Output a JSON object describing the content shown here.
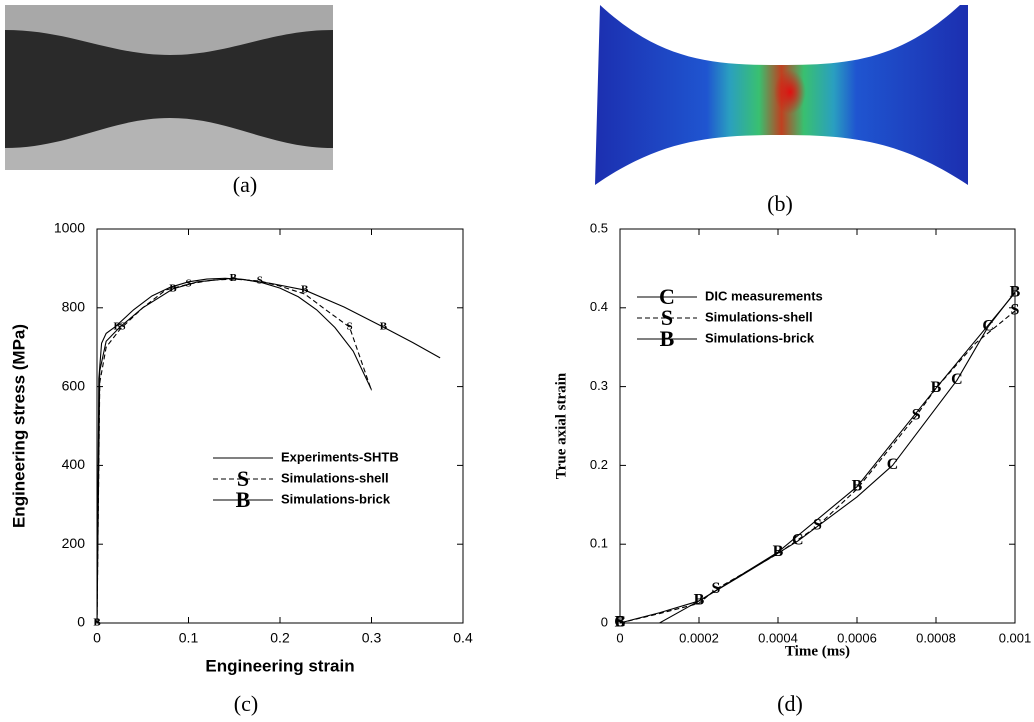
{
  "figure_captions": [
    "(a)",
    "(b)"
  ],
  "chart_data": [
    {
      "type": "line",
      "caption": "(c)",
      "xlabel": "Engineering strain",
      "ylabel": "Engineering stress (MPa)",
      "xlim": [
        0,
        0.4
      ],
      "xticks": [
        0,
        0.1,
        0.2,
        0.3,
        0.4
      ],
      "ylim": [
        0,
        1000
      ],
      "yticks": [
        0,
        200,
        400,
        600,
        800,
        1000
      ],
      "series": [
        {
          "name": "Experiments-SHTB",
          "color": "#000000",
          "line_style": "solid",
          "x": [
            0,
            0.002,
            0.005,
            0.01,
            0.02,
            0.04,
            0.06,
            0.08,
            0.1,
            0.12,
            0.14,
            0.16,
            0.18,
            0.2,
            0.22,
            0.24,
            0.26,
            0.28,
            0.3
          ],
          "values": [
            0,
            620,
            710,
            735,
            752,
            795,
            830,
            852,
            866,
            873,
            875,
            872,
            864,
            850,
            828,
            795,
            750,
            690,
            592
          ]
        },
        {
          "name": "Simulations-shell",
          "color": "#000000",
          "line_style": "dashed",
          "marker": "S",
          "x": [
            0,
            0.003,
            0.01,
            0.025,
            0.05,
            0.075,
            0.1,
            0.125,
            0.15,
            0.178,
            0.2,
            0.227,
            0.25,
            0.276,
            0.3
          ],
          "values": [
            0,
            610,
            700,
            745,
            800,
            845,
            860,
            870,
            873,
            868,
            855,
            835,
            795,
            751,
            590
          ],
          "marker_x": [
            0,
            0.028,
            0.1,
            0.178,
            0.276
          ],
          "marker_values": [
            0,
            751,
            860,
            868,
            751
          ]
        },
        {
          "name": "Simulations-brick",
          "color": "#000000",
          "line_style": "solid",
          "marker": "B",
          "x": [
            0,
            0.003,
            0.01,
            0.025,
            0.05,
            0.083,
            0.11,
            0.149,
            0.19,
            0.227,
            0.27,
            0.313,
            0.345,
            0.375
          ],
          "values": [
            0,
            640,
            715,
            751,
            800,
            848,
            866,
            875,
            862,
            845,
            802,
            751,
            712,
            673
          ],
          "marker_x": [
            0,
            0.022,
            0.083,
            0.149,
            0.227,
            0.313
          ],
          "marker_values": [
            0,
            751,
            848,
            875,
            845,
            751
          ]
        }
      ]
    },
    {
      "type": "line",
      "caption": "(d)",
      "xlabel": "Time (ms)",
      "ylabel": "True axial strain",
      "xlim": [
        0,
        0.001
      ],
      "xticks": [
        0,
        0.0002,
        0.0004,
        0.0006,
        0.0008,
        0.001
      ],
      "ylim": [
        0,
        0.5
      ],
      "yticks": [
        0,
        0.1,
        0.2,
        0.3,
        0.4,
        0.5
      ],
      "series": [
        {
          "name": "DIC measurements",
          "color": "#000000",
          "line_style": "solid",
          "marker": "C",
          "x": [
            0,
            0.0001,
            0.0002,
            0.0003,
            0.00045,
            0.0006,
            0.00069,
            0.000853,
            0.000932,
            0.001
          ],
          "values": [
            0,
            0,
            0.028,
            0.058,
            0.104,
            0.16,
            0.2,
            0.308,
            0.376,
            0.42
          ],
          "marker_x": [
            0,
            0.00045,
            0.00069,
            0.000853,
            0.000932
          ],
          "marker_values": [
            0,
            0.104,
            0.2,
            0.308,
            0.376
          ]
        },
        {
          "name": "Simulations-shell",
          "color": "#000000",
          "line_style": "dashed",
          "marker": "S",
          "x": [
            0,
            0.0001,
            0.0002,
            0.000243,
            0.0004,
            0.0005,
            0.0006,
            0.00075,
            0.0008,
            0.0009,
            0.001
          ],
          "values": [
            0,
            0.012,
            0.025,
            0.043,
            0.088,
            0.123,
            0.17,
            0.263,
            0.298,
            0.355,
            0.396
          ],
          "marker_x": [
            0,
            0.000243,
            0.0005,
            0.00075,
            0.001
          ],
          "marker_values": [
            0,
            0.043,
            0.123,
            0.263,
            0.396
          ]
        },
        {
          "name": "Simulations-brick",
          "color": "#000000",
          "line_style": "solid",
          "marker": "B",
          "x": [
            0,
            0.0001,
            0.0002,
            0.0004,
            0.0006,
            0.0008,
            0.001
          ],
          "values": [
            0,
            0.013,
            0.028,
            0.09,
            0.173,
            0.298,
            0.419
          ],
          "marker_x": [
            0,
            0.0002,
            0.0004,
            0.0006,
            0.0008,
            0.001
          ],
          "marker_values": [
            0,
            0.028,
            0.09,
            0.173,
            0.298,
            0.419
          ]
        }
      ]
    }
  ]
}
